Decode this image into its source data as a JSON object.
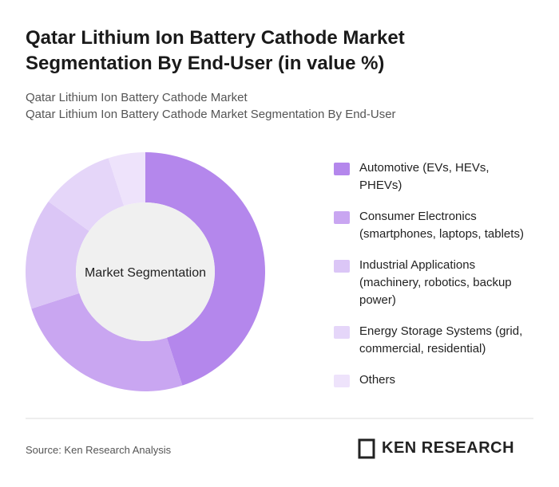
{
  "chart_data": {
    "type": "pie",
    "title": "Qatar Lithium Ion Battery Cathode Market Segmentation By End-User (in value %)",
    "subtitle": [
      "Qatar Lithium Ion Battery Cathode Market",
      "Qatar Lithium Ion Battery Cathode Market Segmentation By End-User"
    ],
    "center_label": "Market Segmentation",
    "categories": [
      "Automotive (EVs, HEVs, PHEVs)",
      "Consumer Electronics (smartphones, laptops, tablets)",
      "Industrial Applications (machinery, robotics, backup power)",
      "Energy Storage Systems (grid, commercial, residential)",
      "Others"
    ],
    "values": [
      45,
      25,
      15,
      10,
      5
    ],
    "colors": [
      "#b487ec",
      "#c9a6f1",
      "#dbc6f6",
      "#e5d6f9",
      "#eee3fb"
    ],
    "source": "Source: Ken Research Analysis",
    "logo": "KEN RESEARCH"
  }
}
